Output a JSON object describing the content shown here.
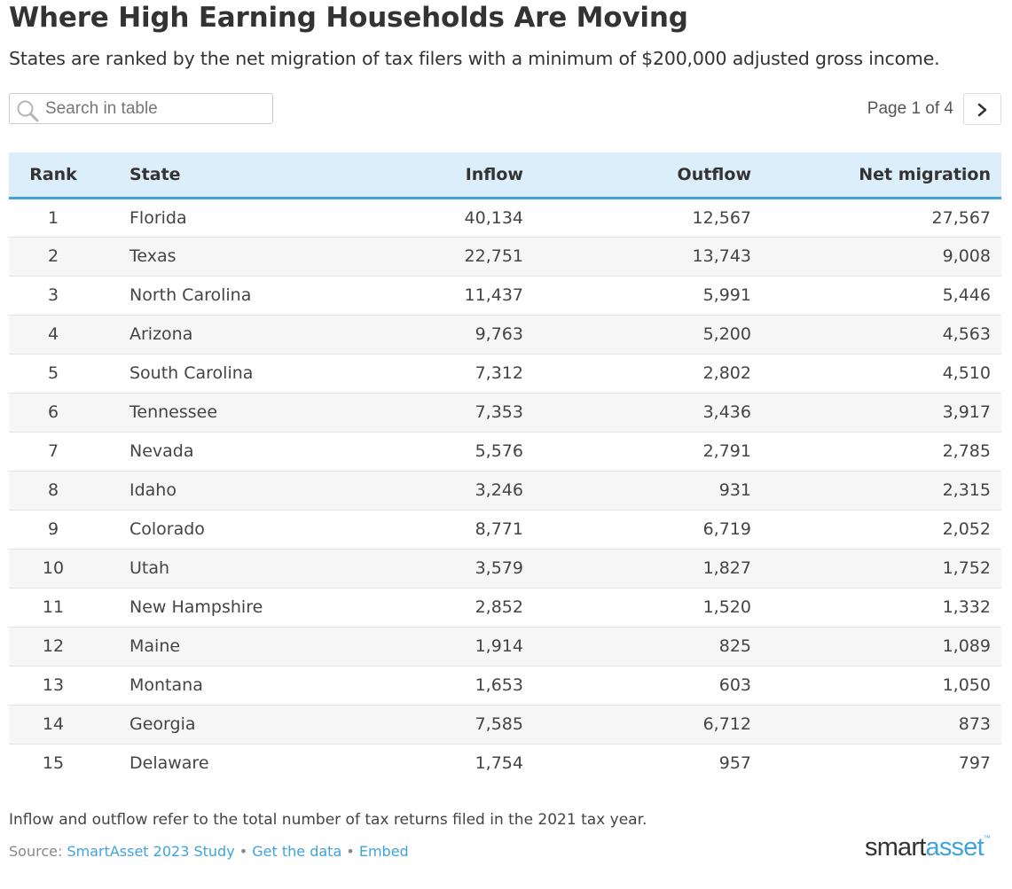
{
  "header": {
    "title": "Where High Earning Households Are Moving",
    "subtitle": "States are ranked by the net migration of tax filers with a minimum of $200,000 adjusted gross income."
  },
  "search": {
    "placeholder": "Search in table",
    "value": ""
  },
  "pager": {
    "label": "Page 1 of 4"
  },
  "colors": {
    "header_bg": "#dceefa",
    "header_rule": "#3fa3dc",
    "link": "#3fa3dc",
    "stripe": "#f6f6f6"
  },
  "chart_data": {
    "type": "table",
    "title": "Where High Earning Households Are Moving",
    "subtitle": "States are ranked by the net migration of tax filers with a minimum of $200,000 adjusted gross income.",
    "columns": [
      "Rank",
      "State",
      "Inflow",
      "Outflow",
      "Net migration"
    ],
    "rows": [
      [
        "1",
        "Florida",
        "40,134",
        "12,567",
        "27,567"
      ],
      [
        "2",
        "Texas",
        "22,751",
        "13,743",
        "9,008"
      ],
      [
        "3",
        "North Carolina",
        "11,437",
        "5,991",
        "5,446"
      ],
      [
        "4",
        "Arizona",
        "9,763",
        "5,200",
        "4,563"
      ],
      [
        "5",
        "South Carolina",
        "7,312",
        "2,802",
        "4,510"
      ],
      [
        "6",
        "Tennessee",
        "7,353",
        "3,436",
        "3,917"
      ],
      [
        "7",
        "Nevada",
        "5,576",
        "2,791",
        "2,785"
      ],
      [
        "8",
        "Idaho",
        "3,246",
        "931",
        "2,315"
      ],
      [
        "9",
        "Colorado",
        "8,771",
        "6,719",
        "2,052"
      ],
      [
        "10",
        "Utah",
        "3,579",
        "1,827",
        "1,752"
      ],
      [
        "11",
        "New Hampshire",
        "2,852",
        "1,520",
        "1,332"
      ],
      [
        "12",
        "Maine",
        "1,914",
        "825",
        "1,089"
      ],
      [
        "13",
        "Montana",
        "1,653",
        "603",
        "1,050"
      ],
      [
        "14",
        "Georgia",
        "7,585",
        "6,712",
        "873"
      ],
      [
        "15",
        "Delaware",
        "1,754",
        "957",
        "797"
      ]
    ]
  },
  "footer": {
    "note": "Inflow and outflow refer to the total number of tax returns filed in the 2021 tax year.",
    "source_prefix": "Source: ",
    "source_link": "SmartAsset 2023 Study",
    "separator": " • ",
    "data_link": "Get the data",
    "embed_link": "Embed",
    "logo_smart": "smart",
    "logo_asset": "asset",
    "logo_tm": "™"
  }
}
